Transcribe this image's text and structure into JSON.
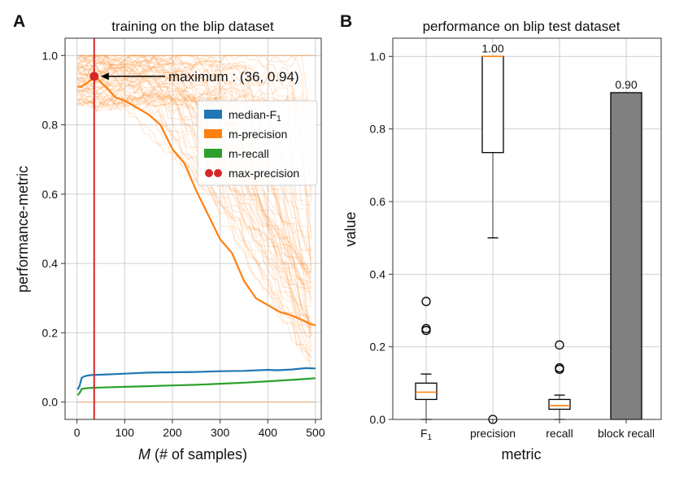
{
  "chart_data": [
    {
      "panel": "A",
      "type": "line",
      "title": "training on the blip dataset",
      "xlabel": "M (# of samples)",
      "xlabel_italic_part": "M",
      "xlabel_rest": " (# of samples)",
      "ylabel": "performance-metric",
      "xlim": [
        -25,
        512
      ],
      "ylim": [
        -0.05,
        1.05
      ],
      "xticks": [
        0,
        100,
        200,
        300,
        400,
        500
      ],
      "yticks": [
        "0.0",
        "0.2",
        "0.4",
        "0.6",
        "0.8",
        "1.0"
      ],
      "ytick_values": [
        0.0,
        0.2,
        0.4,
        0.6,
        0.8,
        1.0
      ],
      "grid": true,
      "legend_position": "upper-right",
      "legend": [
        {
          "label": "median-F",
          "subscript": "1",
          "color": "#1f77b4",
          "marker": "square"
        },
        {
          "label": "m-precision",
          "color": "#ff7f0e",
          "marker": "square"
        },
        {
          "label": "m-recall",
          "color": "#2ca02c",
          "marker": "square"
        },
        {
          "label": "max-precision",
          "color": "#d62728",
          "marker": "dot"
        }
      ],
      "series": [
        {
          "name": "median-F1",
          "color": "#1f77b4",
          "x": [
            1,
            5,
            10,
            15,
            20,
            30,
            50,
            100,
            150,
            200,
            250,
            300,
            350,
            400,
            420,
            450,
            480,
            500
          ],
          "values": [
            0.036,
            0.045,
            0.07,
            0.074,
            0.076,
            0.078,
            0.079,
            0.082,
            0.085,
            0.086,
            0.087,
            0.089,
            0.09,
            0.093,
            0.092,
            0.094,
            0.098,
            0.097
          ]
        },
        {
          "name": "m-precision",
          "color": "#ff7f0e",
          "x": [
            1,
            10,
            20,
            30,
            36,
            45,
            60,
            80,
            100,
            125,
            150,
            175,
            200,
            225,
            250,
            275,
            300,
            325,
            350,
            375,
            400,
            425,
            450,
            475,
            490,
            500
          ],
          "values": [
            0.91,
            0.91,
            0.92,
            0.93,
            0.94,
            0.93,
            0.91,
            0.88,
            0.87,
            0.85,
            0.83,
            0.8,
            0.73,
            0.69,
            0.61,
            0.54,
            0.47,
            0.43,
            0.35,
            0.3,
            0.28,
            0.26,
            0.25,
            0.235,
            0.225,
            0.222
          ]
        },
        {
          "name": "m-recall",
          "color": "#2ca02c",
          "x": [
            1,
            5,
            10,
            20,
            30,
            50,
            100,
            150,
            200,
            250,
            300,
            350,
            400,
            450,
            500
          ],
          "values": [
            0.02,
            0.025,
            0.038,
            0.04,
            0.041,
            0.042,
            0.044,
            0.046,
            0.048,
            0.05,
            0.053,
            0.056,
            0.06,
            0.064,
            0.069
          ]
        }
      ],
      "vline_x": 36,
      "vline_color": "#d62728",
      "max_point": {
        "x": 36,
        "y": 0.94
      },
      "annotation": "maximum : (36, 0.94)",
      "background_runs": {
        "count": 60,
        "color": "#ff7f0e",
        "note": "individual per-image precision traces"
      }
    },
    {
      "panel": "B",
      "type": "box",
      "title": "performance on blip test dataset",
      "xlabel": "metric",
      "ylabel": "value",
      "ylim": [
        0.0,
        1.05
      ],
      "yticks": [
        "0.0",
        "0.2",
        "0.4",
        "0.6",
        "0.8",
        "1.0"
      ],
      "ytick_values": [
        0.0,
        0.2,
        0.4,
        0.6,
        0.8,
        1.0
      ],
      "grid": true,
      "categories": [
        {
          "label": "F",
          "subscript": "1"
        },
        {
          "label": "precision"
        },
        {
          "label": "recall"
        },
        {
          "label": "block recall"
        }
      ],
      "boxes": [
        {
          "name": "F1",
          "q1": 0.055,
          "median": 0.075,
          "q3": 0.1,
          "whisker_low": 0.0,
          "whisker_high": 0.125,
          "outliers": [
            0.25,
            0.245,
            0.325
          ]
        },
        {
          "name": "precision",
          "q1": 0.735,
          "median": 1.0,
          "q3": 1.0,
          "whisker_low": 0.5,
          "whisker_high": 1.0,
          "outliers": [
            0.0
          ],
          "label": "1.00"
        },
        {
          "name": "recall",
          "q1": 0.028,
          "median": 0.038,
          "q3": 0.055,
          "whisker_low": 0.0,
          "whisker_high": 0.067,
          "outliers": [
            0.138,
            0.142,
            0.205
          ]
        }
      ],
      "bar": {
        "name": "block recall",
        "value": 0.9,
        "label": "0.90",
        "color": "#808080"
      }
    }
  ]
}
